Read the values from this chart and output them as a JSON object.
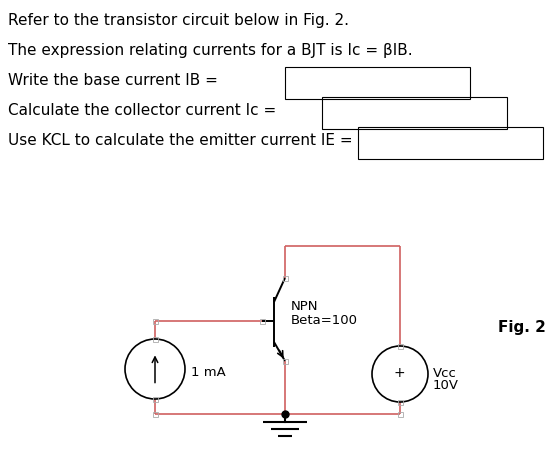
{
  "bg_color": "#ffffff",
  "text_color": "#000000",
  "circuit_color": "#d06060",
  "line1": "Refer to the transistor circuit below in Fig. 2.",
  "line2": "The expression relating currents for a BJT is Ic = βIB.",
  "line3": "Write the base current IB =",
  "line4": "Calculate the collector current Ic =",
  "line5": "Use KCL to calculate the emitter current IE =",
  "fig_label": "Fig. 2",
  "npn_label1": "NPN",
  "npn_label2": "Beta=100",
  "current_source_label": "1 mA",
  "voltage_source_label1": "Vcc",
  "voltage_source_label2": "10V",
  "font_size_text": 11,
  "font_size_circuit": 9.5
}
